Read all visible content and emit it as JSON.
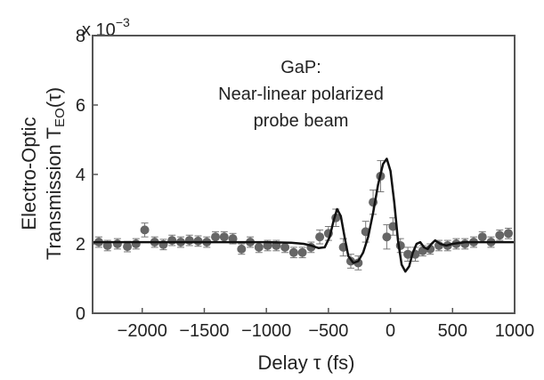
{
  "chart_data": {
    "type": "scatter",
    "title": "",
    "annotation": [
      "GaP:",
      "Near-linear polarized",
      "probe beam"
    ],
    "xlabel": "Delay τ (fs)",
    "ylabel_line1": "Electro-Optic",
    "ylabel_line2_prefix": "Transmission T",
    "ylabel_line2_sub": "EO",
    "ylabel_line2_suffix": "(τ)",
    "y_multiplier": "x 10",
    "y_multiplier_exp": "−3",
    "xlim": [
      -2400,
      1000
    ],
    "ylim": [
      0,
      8
    ],
    "xticks": [
      -2000,
      -1500,
      -1000,
      -500,
      0,
      500,
      1000
    ],
    "xtick_labels": [
      "−2000",
      "−1500",
      "−1000",
      "−500",
      "0",
      "500",
      "1000"
    ],
    "yticks": [
      0,
      2,
      4,
      6,
      8
    ],
    "ytick_labels": [
      "0",
      "2",
      "4",
      "6",
      "8"
    ],
    "grid": false,
    "colors": {
      "points": "#666666",
      "fit": "#111111",
      "frame": "#555555"
    },
    "series": [
      {
        "kind": "points_with_errorbars",
        "x": [
          -2350,
          -2280,
          -2200,
          -2120,
          -2050,
          -1980,
          -1900,
          -1830,
          -1760,
          -1690,
          -1620,
          -1550,
          -1480,
          -1410,
          -1340,
          -1270,
          -1200,
          -1130,
          -1060,
          -990,
          -920,
          -850,
          -780,
          -710,
          -640,
          -570,
          -500,
          -440,
          -380,
          -320,
          -260,
          -200,
          -140,
          -80,
          -30,
          20,
          80,
          140,
          200,
          260,
          320,
          390,
          460,
          530,
          600,
          670,
          740,
          810,
          880,
          950
        ],
        "y": [
          2.05,
          1.95,
          2.0,
          1.92,
          2.0,
          2.4,
          2.05,
          1.98,
          2.1,
          2.05,
          2.1,
          2.08,
          2.05,
          2.2,
          2.2,
          2.15,
          1.85,
          2.05,
          1.9,
          1.95,
          1.95,
          1.9,
          1.75,
          1.75,
          1.9,
          2.2,
          2.3,
          2.75,
          1.9,
          1.5,
          1.45,
          2.35,
          3.2,
          3.95,
          2.2,
          2.5,
          1.95,
          1.7,
          1.7,
          1.8,
          1.85,
          1.95,
          1.95,
          2.0,
          2.0,
          2.05,
          2.2,
          2.05,
          2.25,
          2.3
        ],
        "err": [
          0.15,
          0.15,
          0.15,
          0.15,
          0.15,
          0.2,
          0.15,
          0.15,
          0.15,
          0.15,
          0.15,
          0.15,
          0.15,
          0.15,
          0.15,
          0.15,
          0.15,
          0.15,
          0.15,
          0.15,
          0.15,
          0.15,
          0.15,
          0.15,
          0.15,
          0.2,
          0.2,
          0.25,
          0.25,
          0.2,
          0.2,
          0.3,
          0.35,
          0.45,
          0.35,
          0.25,
          0.2,
          0.2,
          0.2,
          0.15,
          0.15,
          0.15,
          0.15,
          0.15,
          0.15,
          0.15,
          0.15,
          0.15,
          0.15,
          0.15
        ]
      },
      {
        "kind": "fit_line",
        "x": [
          -2400,
          -2000,
          -1500,
          -1000,
          -800,
          -700,
          -640,
          -580,
          -530,
          -490,
          -460,
          -430,
          -400,
          -370,
          -340,
          -300,
          -260,
          -220,
          -180,
          -140,
          -100,
          -60,
          -30,
          0,
          30,
          60,
          90,
          120,
          150,
          180,
          210,
          240,
          270,
          300,
          330,
          360,
          400,
          450,
          500,
          600,
          700,
          800,
          900,
          1000
        ],
        "y": [
          2.05,
          2.05,
          2.05,
          2.05,
          2.03,
          2.0,
          1.95,
          1.88,
          1.9,
          2.2,
          2.65,
          3.0,
          2.8,
          2.2,
          1.65,
          1.45,
          1.5,
          1.75,
          2.2,
          2.9,
          3.7,
          4.3,
          4.45,
          4.1,
          3.2,
          2.1,
          1.4,
          1.2,
          1.35,
          1.75,
          2.0,
          2.05,
          1.9,
          1.85,
          2.0,
          2.1,
          2.0,
          1.95,
          2.0,
          2.05,
          2.05,
          2.05,
          2.05,
          2.05
        ]
      }
    ]
  }
}
